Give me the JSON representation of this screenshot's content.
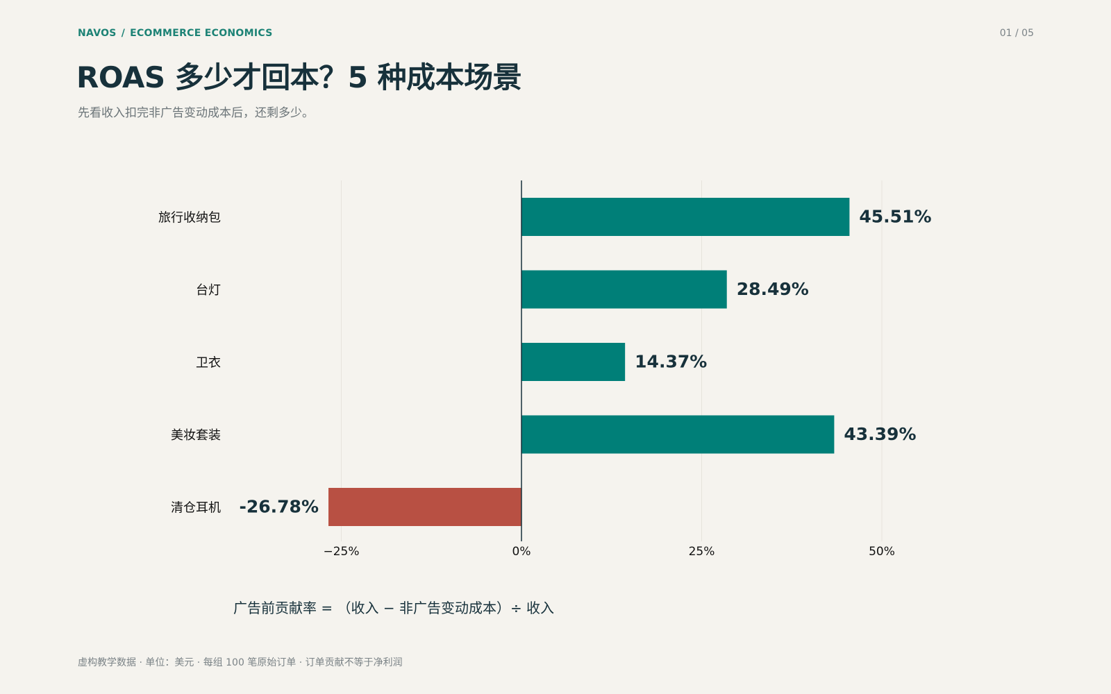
{
  "header": {
    "brand": "NAVOS",
    "separator": "/",
    "section": "ECOMMERCE ECONOMICS",
    "page_counter": "01 / 05"
  },
  "title": "ROAS 多少才回本？5 种成本场景",
  "subtitle": "先看收入扣完非广告变动成本后，还剩多少。",
  "formula": "广告前贡献率 = （收入 − 非广告变动成本）÷ 收入",
  "footnote": "虚构教学数据 · 单位：美元 · 每组 100 笔原始订单 · 订单贡献不等于净利润",
  "colors": {
    "positive": "#007f78",
    "negative": "#b85043",
    "accent": "#1c8275",
    "text": "#17313b",
    "background": "#f5f3ee"
  },
  "chart_data": {
    "type": "bar",
    "orientation": "horizontal",
    "categories": [
      "旅行收纳包",
      "台灯",
      "卫衣",
      "美妆套装",
      "清仓耳机"
    ],
    "values": [
      45.51,
      28.49,
      14.37,
      43.39,
      -26.78
    ],
    "value_labels": [
      "45.51%",
      "28.49%",
      "14.37%",
      "43.39%",
      "-26.78%"
    ],
    "xlim": [
      -25,
      50
    ],
    "xticks": [
      -25,
      0,
      25,
      50
    ],
    "xtick_labels": [
      "−25%",
      "0%",
      "25%",
      "50%"
    ],
    "grid": true
  }
}
